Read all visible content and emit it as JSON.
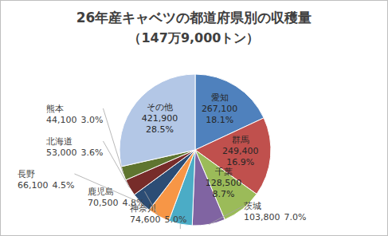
{
  "chart_data": {
    "type": "pie",
    "title": "26年産キャベツの都道府県別の収穫量",
    "subtitle": "（147万9,000トン）",
    "categories": [
      "愛知",
      "群馬",
      "千葉",
      "茨城",
      "神奈川",
      "鹿児島",
      "長野",
      "北海道",
      "熊本",
      "その他"
    ],
    "values": [
      267100,
      249400,
      128500,
      103800,
      74600,
      70500,
      66100,
      53000,
      44100,
      421900
    ],
    "value_labels": [
      "267,100",
      "249,400",
      "128,500",
      "103,800",
      "74,600",
      "70,500",
      "66,100",
      "53,000",
      "44,100",
      "421,900"
    ],
    "percent_labels": [
      "18.1%",
      "16.9%",
      "8.7%",
      "7.0%",
      "5.0%",
      "4.8%",
      "4.5%",
      "3.6%",
      "3.0%",
      "28.5%"
    ],
    "colors": [
      "#4f81bd",
      "#c0504d",
      "#9bbb59",
      "#8064a2",
      "#4bacc6",
      "#f79646",
      "#2c4d75",
      "#772c2a",
      "#5f7530",
      "#b3c7e6"
    ],
    "data_labels": true
  }
}
